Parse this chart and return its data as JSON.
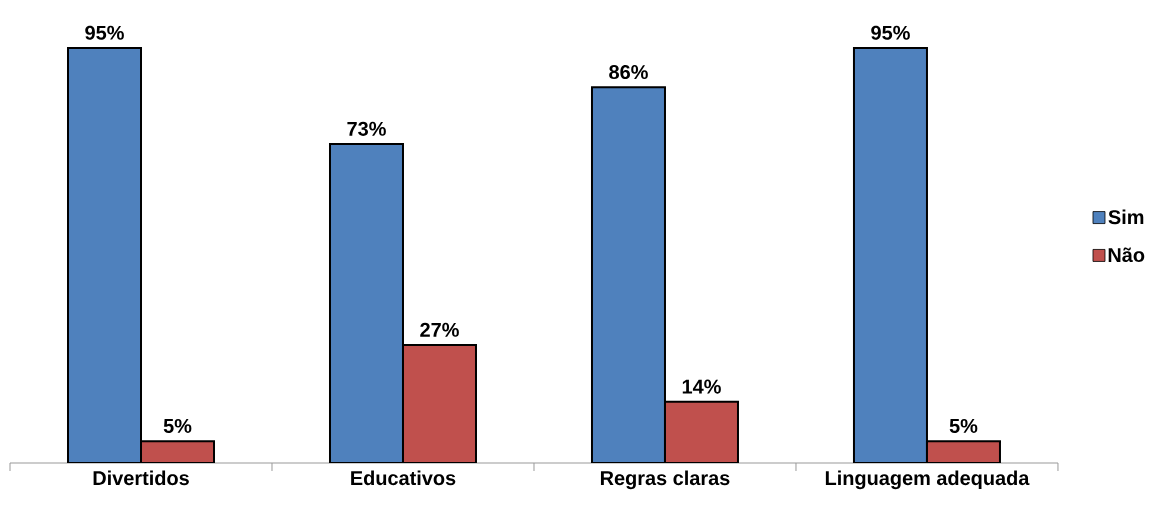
{
  "chart_data": {
    "type": "bar",
    "categories": [
      "Divertidos",
      "Educativos",
      "Regras claras",
      "Linguagem adequada"
    ],
    "series": [
      {
        "name": "Sim",
        "color": "#4f81bd",
        "values": [
          95,
          73,
          86,
          95
        ],
        "value_labels": [
          "95%",
          "73%",
          "86%",
          "95%"
        ]
      },
      {
        "name": "Não",
        "color": "#c0504d",
        "values": [
          5,
          27,
          14,
          5
        ],
        "value_labels": [
          "5%",
          "27%",
          "14%",
          "5%"
        ]
      }
    ],
    "legend": "right"
  }
}
